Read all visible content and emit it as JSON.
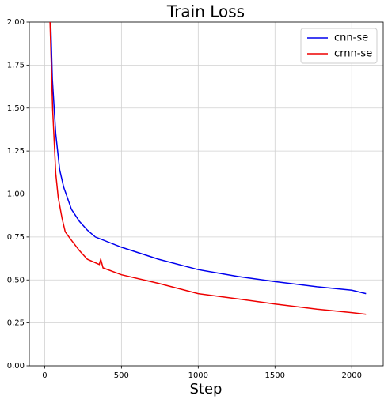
{
  "chart_data": {
    "type": "line",
    "title": "Train Loss",
    "x_label": "Step",
    "xlim": [
      -100,
      2205
    ],
    "ylim": [
      0,
      2
    ],
    "xticks": [
      0,
      500,
      1000,
      1500,
      2000
    ],
    "yticks": [
      {
        "value": 0,
        "label": "0.00"
      },
      0.25,
      {
        "value": 0.5,
        "label": "0.50"
      },
      0.75,
      {
        "value": 1,
        "label": "1.00"
      },
      1.25,
      {
        "value": 1.5,
        "label": "1.50"
      },
      1.75,
      {
        "value": 2,
        "label": "2.00"
      }
    ],
    "grid": true,
    "legend": "upper right",
    "series": [
      {
        "name": "cnn-se",
        "color": "#0000ee",
        "x": [
          30,
          50,
          72,
          98,
          124,
          175,
          227,
          278,
          330,
          500,
          742,
          1000,
          1258,
          1500,
          1773,
          2000,
          2093
        ],
        "values": [
          2.3,
          1.67,
          1.35,
          1.14,
          1.04,
          0.91,
          0.84,
          0.79,
          0.75,
          0.69,
          0.62,
          0.56,
          0.52,
          0.49,
          0.46,
          0.44,
          0.42
        ]
      },
      {
        "name": "crnn-se",
        "color": "#ee0000",
        "x": [
          25,
          52,
          72,
          88,
          113,
          134,
          175,
          227,
          278,
          356,
          365,
          380,
          500,
          742,
          1000,
          1258,
          1500,
          1773,
          2000,
          2093
        ],
        "values": [
          2.3,
          1.49,
          1.12,
          0.98,
          0.86,
          0.78,
          0.73,
          0.67,
          0.62,
          0.59,
          0.62,
          0.57,
          0.53,
          0.48,
          0.42,
          0.39,
          0.36,
          0.33,
          0.31,
          0.3
        ]
      }
    ]
  }
}
